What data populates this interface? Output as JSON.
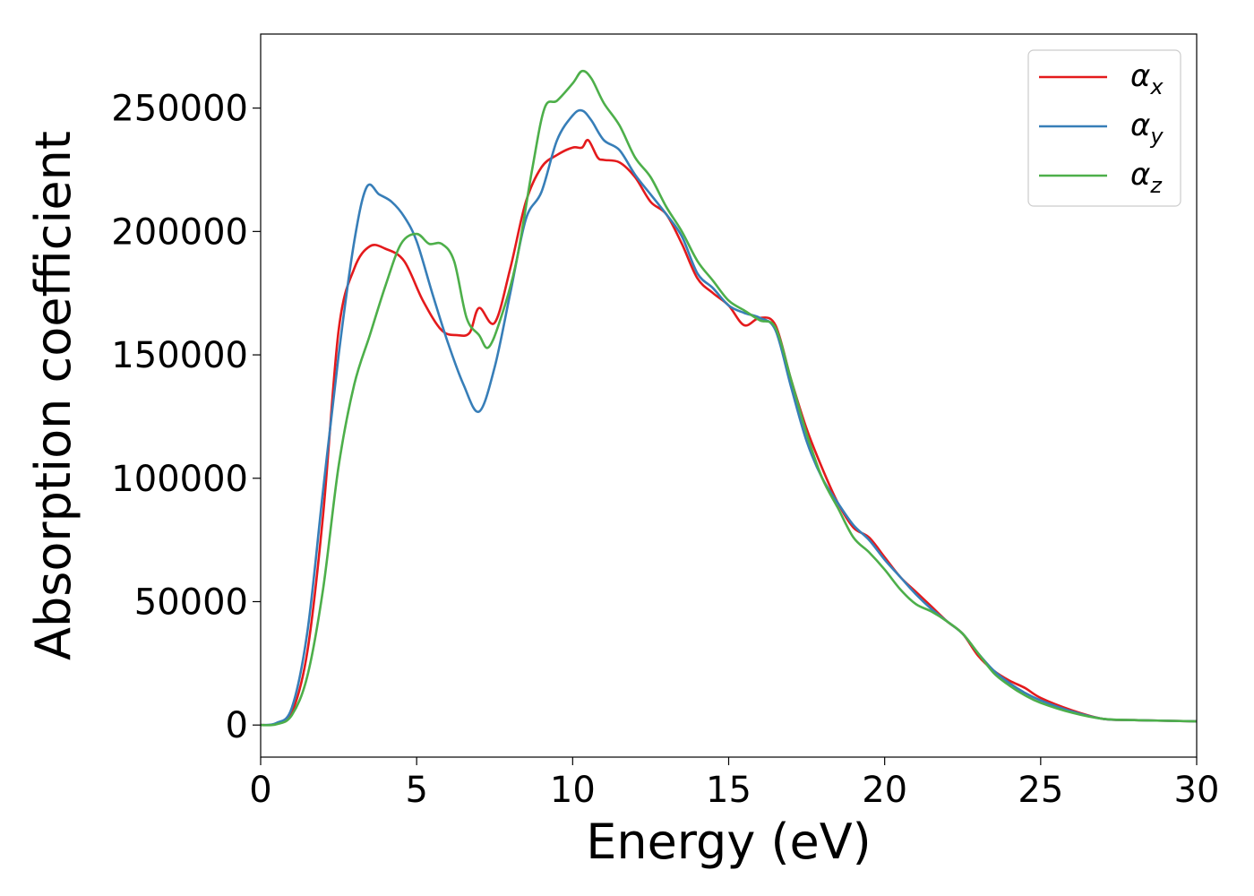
{
  "chart_data": {
    "type": "line",
    "xlabel": "Energy (eV)",
    "ylabel": "Absorption coefficient",
    "xlim": [
      0,
      30
    ],
    "ylim": [
      -13000,
      280000
    ],
    "x_ticks": [
      0,
      5,
      10,
      15,
      20,
      25,
      30
    ],
    "y_ticks": [
      0,
      50000,
      100000,
      150000,
      200000,
      250000
    ],
    "grid": false,
    "legend_position": "top-right",
    "series": [
      {
        "name": "α_x",
        "legend_base": "α",
        "legend_sub": "x",
        "color": "#e41a1c",
        "points": [
          [
            0,
            0
          ],
          [
            0.5,
            500
          ],
          [
            1.0,
            5000
          ],
          [
            1.5,
            30000
          ],
          [
            2.0,
            85000
          ],
          [
            2.5,
            160000
          ],
          [
            3.0,
            185000
          ],
          [
            3.5,
            194000
          ],
          [
            4.0,
            193000
          ],
          [
            4.6,
            188000
          ],
          [
            5.2,
            172000
          ],
          [
            5.8,
            160000
          ],
          [
            6.3,
            158000
          ],
          [
            6.7,
            159000
          ],
          [
            7.0,
            169000
          ],
          [
            7.5,
            163000
          ],
          [
            8.0,
            185000
          ],
          [
            8.5,
            212000
          ],
          [
            9.0,
            226000
          ],
          [
            9.5,
            231000
          ],
          [
            10.0,
            234000
          ],
          [
            10.3,
            234000
          ],
          [
            10.5,
            237000
          ],
          [
            10.8,
            230000
          ],
          [
            11.0,
            229000
          ],
          [
            11.5,
            228000
          ],
          [
            12.0,
            222000
          ],
          [
            12.5,
            212000
          ],
          [
            13.0,
            207000
          ],
          [
            13.5,
            195000
          ],
          [
            14.0,
            181000
          ],
          [
            14.5,
            175000
          ],
          [
            15.0,
            170000
          ],
          [
            15.5,
            162000
          ],
          [
            16.0,
            165000
          ],
          [
            16.5,
            162000
          ],
          [
            17.0,
            140000
          ],
          [
            17.5,
            120000
          ],
          [
            18.0,
            104000
          ],
          [
            18.5,
            90000
          ],
          [
            19.0,
            80000
          ],
          [
            19.5,
            76000
          ],
          [
            20.0,
            68000
          ],
          [
            20.5,
            60000
          ],
          [
            21.0,
            54000
          ],
          [
            21.5,
            48000
          ],
          [
            22.0,
            42000
          ],
          [
            22.5,
            37000
          ],
          [
            23.0,
            28000
          ],
          [
            23.5,
            22000
          ],
          [
            24.0,
            18000
          ],
          [
            24.5,
            15000
          ],
          [
            25.0,
            11000
          ],
          [
            26.0,
            6000
          ],
          [
            27.0,
            2500
          ],
          [
            28.0,
            2000
          ],
          [
            30.0,
            1500
          ]
        ]
      },
      {
        "name": "α_y",
        "legend_base": "α",
        "legend_sub": "y",
        "color": "#377eb8",
        "points": [
          [
            0,
            0
          ],
          [
            0.5,
            800
          ],
          [
            1.0,
            7000
          ],
          [
            1.5,
            38000
          ],
          [
            2.0,
            95000
          ],
          [
            2.5,
            150000
          ],
          [
            3.0,
            196000
          ],
          [
            3.4,
            218000
          ],
          [
            3.8,
            215000
          ],
          [
            4.2,
            212000
          ],
          [
            4.6,
            206000
          ],
          [
            5.0,
            196000
          ],
          [
            5.5,
            175000
          ],
          [
            6.0,
            155000
          ],
          [
            6.5,
            138000
          ],
          [
            7.0,
            127000
          ],
          [
            7.5,
            145000
          ],
          [
            8.0,
            175000
          ],
          [
            8.5,
            205000
          ],
          [
            9.0,
            216000
          ],
          [
            9.5,
            237000
          ],
          [
            10.0,
            247000
          ],
          [
            10.3,
            249000
          ],
          [
            10.6,
            245000
          ],
          [
            11.0,
            237000
          ],
          [
            11.5,
            233000
          ],
          [
            12.0,
            223000
          ],
          [
            12.5,
            215000
          ],
          [
            13.0,
            207000
          ],
          [
            13.5,
            198000
          ],
          [
            14.0,
            183000
          ],
          [
            14.5,
            177000
          ],
          [
            15.0,
            170000
          ],
          [
            15.5,
            167000
          ],
          [
            16.0,
            165000
          ],
          [
            16.5,
            160000
          ],
          [
            17.0,
            137000
          ],
          [
            17.5,
            115000
          ],
          [
            18.0,
            100000
          ],
          [
            18.5,
            90000
          ],
          [
            19.0,
            81000
          ],
          [
            19.5,
            75000
          ],
          [
            20.0,
            67000
          ],
          [
            20.5,
            60000
          ],
          [
            21.0,
            53000
          ],
          [
            21.5,
            47000
          ],
          [
            22.0,
            42000
          ],
          [
            22.5,
            37000
          ],
          [
            23.0,
            29000
          ],
          [
            23.5,
            22000
          ],
          [
            24.0,
            17000
          ],
          [
            24.5,
            13000
          ],
          [
            25.0,
            10000
          ],
          [
            26.0,
            5500
          ],
          [
            27.0,
            2500
          ],
          [
            28.0,
            2000
          ],
          [
            30.0,
            1500
          ]
        ]
      },
      {
        "name": "α_z",
        "legend_base": "α",
        "legend_sub": "z",
        "color": "#4daf4a",
        "points": [
          [
            0,
            0
          ],
          [
            0.5,
            300
          ],
          [
            1.0,
            4000
          ],
          [
            1.5,
            20000
          ],
          [
            2.0,
            55000
          ],
          [
            2.5,
            105000
          ],
          [
            3.0,
            138000
          ],
          [
            3.5,
            158000
          ],
          [
            4.0,
            178000
          ],
          [
            4.5,
            195000
          ],
          [
            5.0,
            199000
          ],
          [
            5.4,
            195000
          ],
          [
            5.8,
            195000
          ],
          [
            6.2,
            188000
          ],
          [
            6.6,
            165000
          ],
          [
            7.0,
            158000
          ],
          [
            7.3,
            153000
          ],
          [
            7.7,
            165000
          ],
          [
            8.2,
            188000
          ],
          [
            8.7,
            225000
          ],
          [
            9.1,
            250000
          ],
          [
            9.5,
            253000
          ],
          [
            10.0,
            260000
          ],
          [
            10.3,
            265000
          ],
          [
            10.6,
            262000
          ],
          [
            11.0,
            252000
          ],
          [
            11.5,
            243000
          ],
          [
            12.0,
            230000
          ],
          [
            12.5,
            222000
          ],
          [
            13.0,
            210000
          ],
          [
            13.5,
            200000
          ],
          [
            14.0,
            188000
          ],
          [
            14.5,
            180000
          ],
          [
            15.0,
            172000
          ],
          [
            15.5,
            168000
          ],
          [
            16.0,
            164000
          ],
          [
            16.5,
            161000
          ],
          [
            17.0,
            140000
          ],
          [
            17.5,
            118000
          ],
          [
            18.0,
            100000
          ],
          [
            18.5,
            88000
          ],
          [
            19.0,
            76000
          ],
          [
            19.5,
            70000
          ],
          [
            20.0,
            63000
          ],
          [
            20.5,
            55000
          ],
          [
            21.0,
            49000
          ],
          [
            21.5,
            46000
          ],
          [
            22.0,
            42000
          ],
          [
            22.5,
            37000
          ],
          [
            23.0,
            29000
          ],
          [
            23.5,
            21000
          ],
          [
            24.0,
            16000
          ],
          [
            24.5,
            12000
          ],
          [
            25.0,
            9000
          ],
          [
            26.0,
            5000
          ],
          [
            27.0,
            2500
          ],
          [
            28.0,
            2000
          ],
          [
            30.0,
            1500
          ]
        ]
      }
    ]
  }
}
